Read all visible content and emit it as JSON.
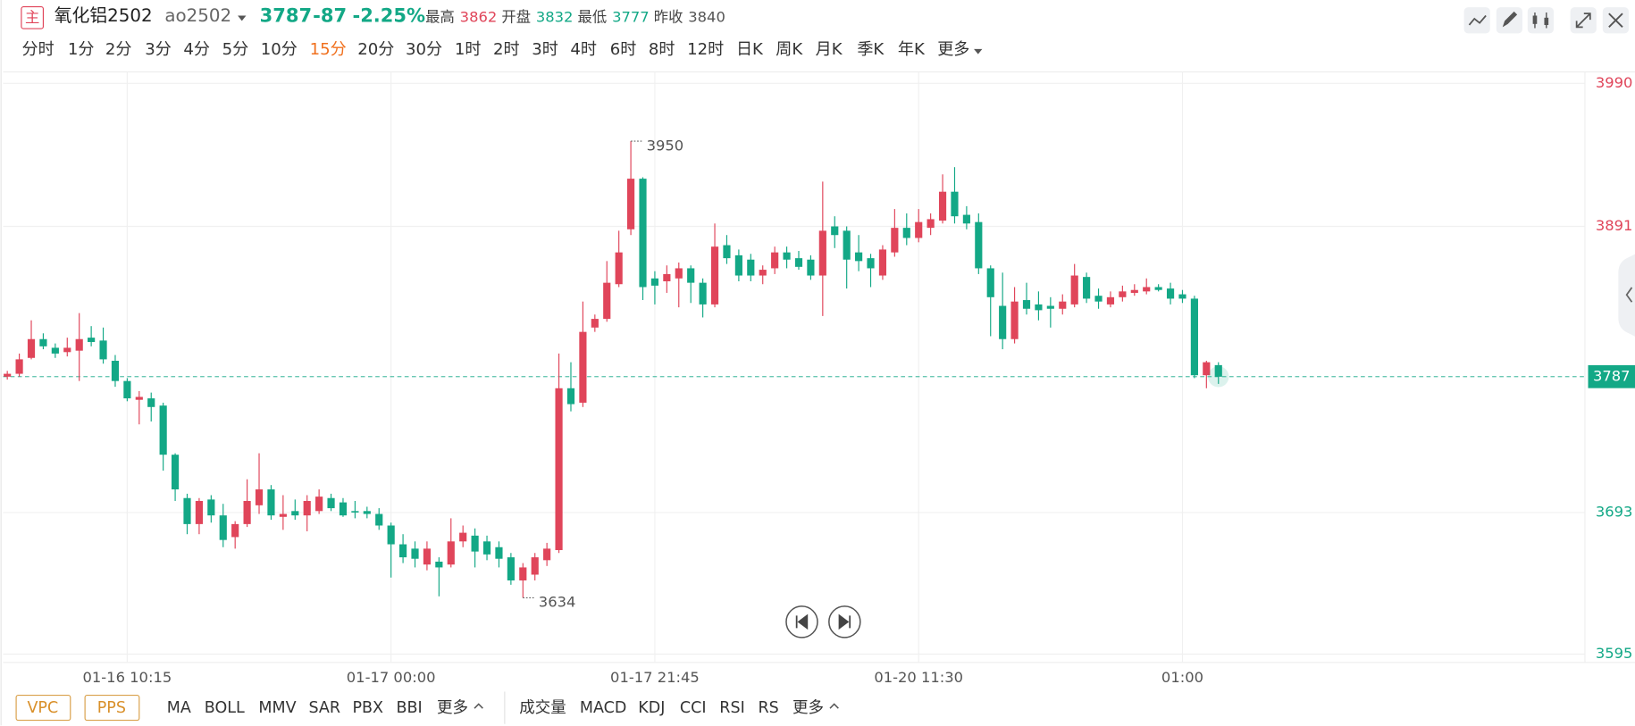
{
  "header": {
    "icon": "主",
    "name": "氧化铝2502",
    "code": "ao2502",
    "price": "3787",
    "change": "-87",
    "change_pct": "-2.25%",
    "stats": [
      {
        "label": "最高",
        "value": "3862"
      },
      {
        "label": "开盘",
        "value": "3832"
      },
      {
        "label": "最低",
        "value": "3777"
      },
      {
        "label": "昨收",
        "value": "3840"
      }
    ]
  },
  "periods": [
    "分时",
    "1分",
    "2分",
    "3分",
    "4分",
    "5分",
    "10分",
    "15分",
    "20分",
    "30分",
    "1时",
    "2时",
    "3时",
    "4时",
    "6时",
    "8时",
    "12时",
    "日K",
    "周K",
    "月K",
    "季K",
    "年K",
    "更多"
  ],
  "active_period": 7,
  "main_boxed": [
    "VPC",
    "PPS"
  ],
  "main_indicators": [
    "MA",
    "BOLL",
    "MMV",
    "SAR",
    "PBX",
    "BBI",
    "更多"
  ],
  "sub_indicators": [
    "成交量",
    "MACD",
    "KDJ",
    "CCI",
    "RSI",
    "RS",
    "更多"
  ],
  "chart_data": {
    "type": "candlestick",
    "categories": [
      null,
      null,
      null,
      null,
      null,
      null,
      null,
      null,
      null,
      null,
      "01-16 10:15",
      null,
      null,
      null,
      null,
      null,
      null,
      null,
      null,
      null,
      null,
      null,
      null,
      null,
      null,
      null,
      null,
      null,
      null,
      null,
      null,
      null,
      "01-17 00:00",
      null,
      null,
      null,
      null,
      null,
      null,
      null,
      null,
      null,
      null,
      null,
      null,
      null,
      null,
      null,
      null,
      null,
      null,
      null,
      null,
      null,
      "01-17 21:45",
      null,
      null,
      null,
      null,
      null,
      null,
      null,
      null,
      null,
      null,
      null,
      null,
      null,
      null,
      null,
      null,
      null,
      null,
      null,
      null,
      null,
      "01-20 11:30",
      null,
      null,
      null,
      null,
      null,
      null,
      null,
      null,
      null,
      null,
      null,
      null,
      null,
      null,
      null,
      null,
      null,
      null,
      null,
      null,
      null,
      "01:00",
      null,
      null,
      null
    ],
    "open": [
      3787,
      3789,
      3800,
      3813,
      3807,
      3804,
      3805,
      3814,
      3812,
      3798,
      3784,
      3771,
      3772,
      3767,
      3733,
      3703,
      3685,
      3702,
      3691,
      3676,
      3685,
      3698,
      3709,
      3690,
      3694,
      3691,
      3694,
      3703,
      3700,
      3694,
      3694,
      3692,
      3684,
      3671,
      3668,
      3657,
      3659,
      3657,
      3673,
      3677,
      3673,
      3669,
      3662,
      3646,
      3650,
      3660,
      3667,
      3779,
      3769,
      3821,
      3827,
      3851,
      3889,
      3924,
      3855,
      3853,
      3855,
      3862,
      3852,
      3837,
      3878,
      3871,
      3868,
      3857,
      3862,
      3873,
      3869,
      3868,
      3857,
      3891,
      3888,
      3873,
      3869,
      3857,
      3873,
      3890,
      3883,
      3890,
      3895,
      3915,
      3899,
      3894,
      3862,
      3836,
      3813,
      3840,
      3837,
      3836,
      3834,
      3837,
      3856,
      3843,
      3837,
      3842,
      3845,
      3846,
      3849,
      3848,
      3844,
      3841,
      3788,
      3795
    ],
    "high": [
      3791,
      3803,
      3826,
      3817,
      3810,
      3814,
      3831,
      3822,
      3821,
      3802,
      3786,
      3777,
      3776,
      3769,
      3734,
      3706,
      3703,
      3705,
      3699,
      3687,
      3716,
      3734,
      3712,
      3705,
      3702,
      3705,
      3709,
      3706,
      3703,
      3701,
      3697,
      3696,
      3686,
      3678,
      3673,
      3673,
      3662,
      3689,
      3684,
      3682,
      3677,
      3673,
      3665,
      3658,
      3665,
      3672,
      3803,
      3797,
      3839,
      3830,
      3867,
      3888,
      3950,
      3925,
      3860,
      3864,
      3866,
      3864,
      3855,
      3893,
      3885,
      3875,
      3872,
      3864,
      3877,
      3877,
      3874,
      3871,
      3922,
      3898,
      3891,
      3885,
      3872,
      3878,
      3903,
      3900,
      3903,
      3900,
      3927,
      3932,
      3905,
      3900,
      3864,
      3859,
      3849,
      3852,
      3846,
      3842,
      3844,
      3865,
      3859,
      3848,
      3846,
      3850,
      3851,
      3855,
      3851,
      3852,
      3847,
      3843,
      3798,
      3797
    ],
    "low": [
      3785,
      3787,
      3799,
      3806,
      3800,
      3801,
      3784,
      3808,
      3796,
      3780,
      3770,
      3754,
      3756,
      3722,
      3701,
      3678,
      3678,
      3686,
      3669,
      3668,
      3683,
      3692,
      3688,
      3681,
      3688,
      3680,
      3692,
      3694,
      3690,
      3689,
      3689,
      3681,
      3648,
      3658,
      3655,
      3653,
      3635,
      3655,
      3669,
      3655,
      3660,
      3655,
      3643,
      3634,
      3646,
      3656,
      3665,
      3763,
      3766,
      3818,
      3825,
      3849,
      3885,
      3840,
      3837,
      3845,
      3835,
      3838,
      3828,
      3835,
      3865,
      3853,
      3853,
      3851,
      3858,
      3862,
      3861,
      3854,
      3829,
      3876,
      3848,
      3860,
      3849,
      3854,
      3870,
      3878,
      3880,
      3885,
      3893,
      3893,
      3889,
      3858,
      3815,
      3806,
      3810,
      3830,
      3826,
      3821,
      3830,
      3835,
      3838,
      3834,
      3835,
      3839,
      3843,
      3844,
      3846,
      3837,
      3838,
      3786,
      3779,
      3782
    ],
    "close": [
      3789,
      3799,
      3813,
      3808,
      3803,
      3807,
      3813,
      3811,
      3799,
      3784,
      3772,
      3773,
      3766,
      3733,
      3709,
      3685,
      3701,
      3691,
      3674,
      3685,
      3701,
      3709,
      3691,
      3692,
      3691,
      3701,
      3704,
      3696,
      3691,
      3693,
      3692,
      3684,
      3671,
      3662,
      3661,
      3668,
      3655,
      3673,
      3679,
      3666,
      3664,
      3661,
      3646,
      3655,
      3662,
      3668,
      3779,
      3768,
      3818,
      3827,
      3852,
      3873,
      3924,
      3849,
      3850,
      3858,
      3862,
      3852,
      3837,
      3877,
      3869,
      3857,
      3857,
      3861,
      3873,
      3868,
      3863,
      3857,
      3888,
      3885,
      3868,
      3867,
      3862,
      3875,
      3890,
      3883,
      3894,
      3896,
      3915,
      3898,
      3893,
      3862,
      3842,
      3813,
      3839,
      3834,
      3833,
      3834,
      3839,
      3857,
      3841,
      3839,
      3842,
      3846,
      3847,
      3849,
      3847,
      3841,
      3841,
      3788,
      3797,
      3787
    ],
    "ylim": [
      3595,
      3990
    ],
    "yticks": [
      3595,
      3693,
      3891,
      3990
    ],
    "grid": true,
    "up_color": "#e0455a",
    "down_color": "#13a886"
  }
}
